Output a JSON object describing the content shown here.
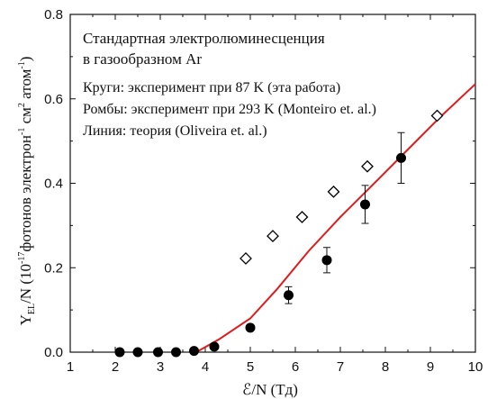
{
  "chart_data": {
    "type": "scatter",
    "xlabel": {
      "main": "ℰ/N (Тд)"
    },
    "ylabel": {
      "main": "Y",
      "sub": "EL",
      "rest": "/N (10",
      "sup1": "-17",
      "rest2": "фотонов электрон",
      "sup2": "-1",
      "rest3": " см",
      "sup3": "2",
      "rest4": " атом",
      "sup4": "-1",
      "end": ")"
    },
    "xlim": [
      1,
      10
    ],
    "ylim": [
      0,
      0.8
    ],
    "xticks": [
      {
        "value": 1,
        "label": "1"
      },
      {
        "value": 2,
        "label": "2"
      },
      {
        "value": 3,
        "label": "3"
      },
      {
        "value": 4,
        "label": "4"
      },
      {
        "value": 5,
        "label": "5"
      },
      {
        "value": 6,
        "label": "6"
      },
      {
        "value": 7,
        "label": "7"
      },
      {
        "value": 8,
        "label": "8"
      },
      {
        "value": 9,
        "label": "9"
      },
      {
        "value": 10,
        "label": "10"
      }
    ],
    "yticks": [
      {
        "value": 0,
        "label": "0.0"
      },
      {
        "value": 0.2,
        "label": "0.2"
      },
      {
        "value": 0.4,
        "label": "0.4"
      },
      {
        "value": 0.6,
        "label": "0.6"
      },
      {
        "value": 0.8,
        "label": "0.8"
      }
    ],
    "annotations": {
      "title_line1": "Стандартная электролюминесценция",
      "title_line2": "в газообразном Ar",
      "circles_note": "Круги: эксперимент при 87 K (эта работа)",
      "diamonds_note": "Ромбы: эксперимент при 293 K (Monteiro et. al.)",
      "line_note": "Линия: теория (Oliveira et. al.)"
    },
    "series": [
      {
        "marker": "filled-circle",
        "color": "#000000",
        "points": [
          {
            "x": 2.1,
            "y": 0.0,
            "err": 0.0
          },
          {
            "x": 2.5,
            "y": 0.0,
            "err": 0.0
          },
          {
            "x": 2.95,
            "y": 0.0,
            "err": 0.0
          },
          {
            "x": 3.35,
            "y": 0.0,
            "err": 0.0
          },
          {
            "x": 3.75,
            "y": 0.003,
            "err": 0.0
          },
          {
            "x": 4.2,
            "y": 0.013,
            "err": 0.004
          },
          {
            "x": 5.0,
            "y": 0.058,
            "err": 0.005
          },
          {
            "x": 5.85,
            "y": 0.135,
            "err": 0.02
          },
          {
            "x": 6.7,
            "y": 0.218,
            "err": 0.03
          },
          {
            "x": 7.55,
            "y": 0.35,
            "err": 0.045
          },
          {
            "x": 8.35,
            "y": 0.46,
            "err": 0.06
          }
        ]
      },
      {
        "marker": "open-diamond",
        "color": "#000000",
        "points": [
          {
            "x": 4.9,
            "y": 0.222
          },
          {
            "x": 5.5,
            "y": 0.275
          },
          {
            "x": 6.15,
            "y": 0.32
          },
          {
            "x": 6.85,
            "y": 0.38
          },
          {
            "x": 7.6,
            "y": 0.44
          },
          {
            "x": 9.15,
            "y": 0.56
          }
        ]
      },
      {
        "marker": "line",
        "color": "#e31a1c",
        "points": [
          {
            "x": 3.8,
            "y": 0.0
          },
          {
            "x": 4.3,
            "y": 0.03
          },
          {
            "x": 5.0,
            "y": 0.08
          },
          {
            "x": 5.6,
            "y": 0.15
          },
          {
            "x": 6.3,
            "y": 0.24
          },
          {
            "x": 7.0,
            "y": 0.32
          },
          {
            "x": 7.8,
            "y": 0.405
          },
          {
            "x": 8.5,
            "y": 0.48
          },
          {
            "x": 9.2,
            "y": 0.555
          },
          {
            "x": 10.0,
            "y": 0.635
          }
        ]
      }
    ]
  }
}
